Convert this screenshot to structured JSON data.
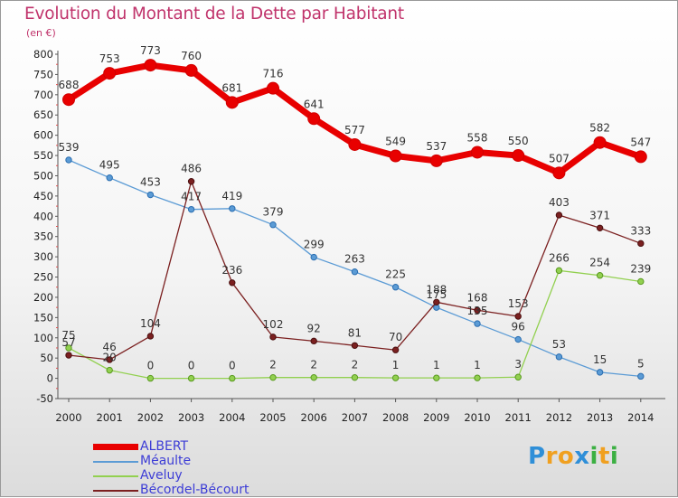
{
  "header": {
    "title": "Evolution du Montant de la Dette par Habitant",
    "subtitle": "(en €)"
  },
  "logo": {
    "text": "Proxiti",
    "letters": [
      "P",
      "r",
      "o",
      "x",
      "i",
      "t",
      "i"
    ],
    "colors": [
      "#2f8fd8",
      "#f0a020",
      "#f0a020",
      "#2f8fd8",
      "#3cb043",
      "#f0a020",
      "#3cb043"
    ]
  },
  "chart_data": {
    "type": "line",
    "title": "Evolution du Montant de la Dette par Habitant",
    "subtitle": "(en €)",
    "x": [
      "2000",
      "2001",
      "2002",
      "2003",
      "2004",
      "2005",
      "2006",
      "2007",
      "2008",
      "2009",
      "2010",
      "2011",
      "2012",
      "2013",
      "2014"
    ],
    "ylim": [
      -50,
      800
    ],
    "yticks": [
      -50,
      0,
      50,
      100,
      150,
      200,
      250,
      300,
      350,
      400,
      450,
      500,
      550,
      600,
      650,
      700,
      750,
      800
    ],
    "grid": false,
    "legend_position": "bottom-left",
    "series": [
      {
        "name": "ALBERT",
        "color": "#e80000",
        "values": [
          688,
          753,
          773,
          760,
          681,
          716,
          641,
          577,
          549,
          537,
          558,
          550,
          507,
          582,
          547
        ]
      },
      {
        "name": "Méaulte",
        "color": "#5b9bd5",
        "values": [
          539,
          495,
          453,
          417,
          419,
          379,
          299,
          263,
          225,
          175,
          135,
          96,
          53,
          15,
          5
        ]
      },
      {
        "name": "Aveluy",
        "color": "#92d050",
        "values": [
          75,
          20,
          0,
          0,
          0,
          2,
          2,
          2,
          1,
          1,
          1,
          3,
          266,
          254,
          239
        ]
      },
      {
        "name": "Bécordel-Bécourt",
        "color": "#7b2020",
        "values": [
          57,
          46,
          104,
          486,
          236,
          102,
          92,
          81,
          70,
          188,
          168,
          153,
          403,
          371,
          333
        ]
      }
    ]
  }
}
